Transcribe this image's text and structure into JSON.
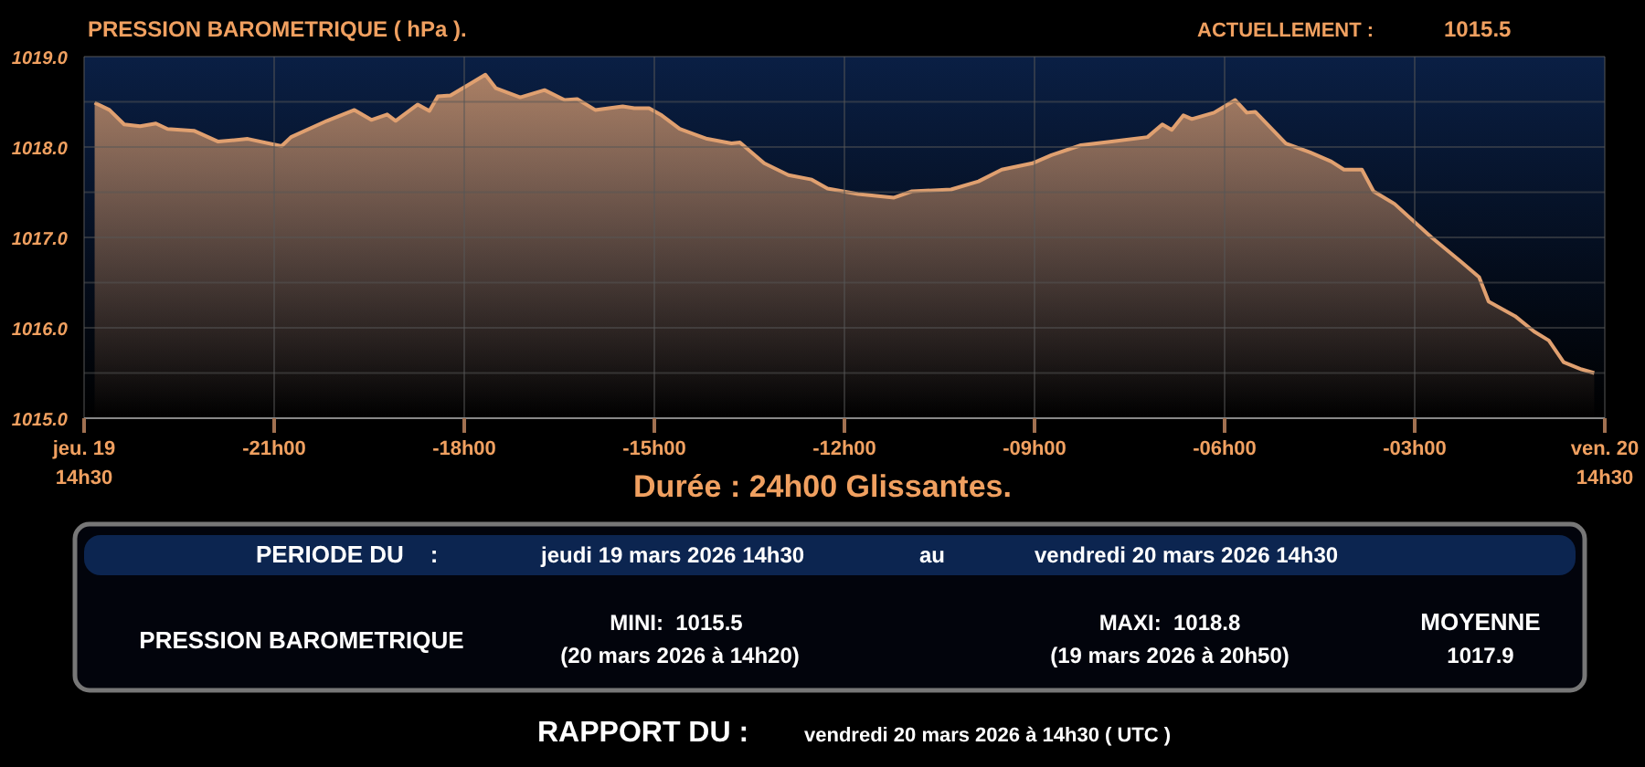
{
  "chart_data": {
    "type": "area",
    "title": "PRESSION BAROMETRIQUE ( hPa ).",
    "x": [
      "2026-03-19T14:40",
      "2026-03-19T14:54",
      "2026-03-19T15:08",
      "2026-03-19T15:23",
      "2026-03-19T15:38",
      "2026-03-19T15:49",
      "2026-03-19T16:14",
      "2026-03-19T16:37",
      "2026-03-19T17:05",
      "2026-03-19T17:37",
      "2026-03-19T17:46",
      "2026-03-19T18:20",
      "2026-03-19T18:46",
      "2026-03-19T19:02",
      "2026-03-19T19:17",
      "2026-03-19T19:25",
      "2026-03-19T19:46",
      "2026-03-19T19:57",
      "2026-03-19T20:05",
      "2026-03-19T20:17",
      "2026-03-19T20:50",
      "2026-03-19T21:00",
      "2026-03-19T21:23",
      "2026-03-19T21:46",
      "2026-03-19T22:05",
      "2026-03-19T22:17",
      "2026-03-19T22:34",
      "2026-03-19T23:00",
      "2026-03-19T23:11",
      "2026-03-19T23:25",
      "2026-03-19T23:37",
      "2026-03-19T23:54",
      "2026-03-20T00:20",
      "2026-03-20T00:43",
      "2026-03-20T00:51",
      "2026-03-20T01:14",
      "2026-03-20T01:37",
      "2026-03-20T01:59",
      "2026-03-20T02:14",
      "2026-03-20T02:43",
      "2026-03-20T03:17",
      "2026-03-20T03:34",
      "2026-03-20T04:11",
      "2026-03-20T04:37",
      "2026-03-20T04:59",
      "2026-03-20T05:28",
      "2026-03-20T05:46",
      "2026-03-20T06:14",
      "2026-03-20T06:43",
      "2026-03-20T07:17",
      "2026-03-20T07:31",
      "2026-03-20T07:40",
      "2026-03-20T07:51",
      "2026-03-20T07:59",
      "2026-03-20T08:20",
      "2026-03-20T08:40",
      "2026-03-20T08:51",
      "2026-03-20T08:59",
      "2026-03-20T09:28",
      "2026-03-20T09:51",
      "2026-03-20T10:11",
      "2026-03-20T10:23",
      "2026-03-20T10:40",
      "2026-03-20T10:51",
      "2026-03-20T11:11",
      "2026-03-20T11:46",
      "2026-03-20T12:14",
      "2026-03-20T12:31",
      "2026-03-20T12:40",
      "2026-03-20T13:05",
      "2026-03-20T13:23",
      "2026-03-20T13:37",
      "2026-03-20T13:51",
      "2026-03-20T14:08",
      "2026-03-20T14:20"
    ],
    "series": [
      {
        "color": "#e0a070",
        "values": [
          1018.49,
          1018.41,
          1018.25,
          1018.23,
          1018.26,
          1018.2,
          1018.18,
          1018.06,
          1018.09,
          1018.01,
          1018.11,
          1018.29,
          1018.41,
          1018.3,
          1018.36,
          1018.29,
          1018.47,
          1018.4,
          1018.56,
          1018.57,
          1018.8,
          1018.65,
          1018.55,
          1018.63,
          1018.52,
          1018.53,
          1018.41,
          1018.45,
          1018.43,
          1018.43,
          1018.35,
          1018.2,
          1018.09,
          1018.04,
          1018.05,
          1017.82,
          1017.69,
          1017.64,
          1017.54,
          1017.48,
          1017.44,
          1017.51,
          1017.53,
          1017.62,
          1017.75,
          1017.82,
          1017.91,
          1018.02,
          1018.06,
          1018.11,
          1018.25,
          1018.19,
          1018.35,
          1018.31,
          1018.38,
          1018.52,
          1018.38,
          1018.39,
          1018.04,
          1017.94,
          1017.84,
          1017.75,
          1017.75,
          1017.51,
          1017.37,
          1017.0,
          1016.73,
          1016.56,
          1016.29,
          1016.13,
          1015.96,
          1015.86,
          1015.62,
          1015.54,
          1015.5
        ]
      }
    ],
    "xlim": [
      "2026-03-19T14:30",
      "2026-03-20T14:30"
    ],
    "xticks": [
      {
        "value": "2026-03-19T14:30",
        "label": "jeu. 19\n14h30"
      },
      {
        "value": "2026-03-19T17:30",
        "label": "-21h00"
      },
      {
        "value": "2026-03-19T20:30",
        "label": "-18h00"
      },
      {
        "value": "2026-03-19T23:30",
        "label": "-15h00"
      },
      {
        "value": "2026-03-20T02:30",
        "label": "-12h00"
      },
      {
        "value": "2026-03-20T05:30",
        "label": "-09h00"
      },
      {
        "value": "2026-03-20T08:30",
        "label": "-06h00"
      },
      {
        "value": "2026-03-20T11:30",
        "label": "-03h00"
      },
      {
        "value": "2026-03-20T14:30",
        "label": "ven. 20\n14h30"
      }
    ],
    "ylim": [
      1015,
      1019
    ],
    "yticks": [
      {
        "value": 1015,
        "label": "1015.0"
      },
      {
        "value": 1015.5,
        "label": null
      },
      {
        "value": 1016,
        "label": "1016.0"
      },
      {
        "value": 1016.5,
        "label": null
      },
      {
        "value": 1017,
        "label": "1017.0"
      },
      {
        "value": 1017.5,
        "label": null
      },
      {
        "value": 1018,
        "label": "1018.0"
      },
      {
        "value": 1018.5,
        "label": null
      },
      {
        "value": 1019,
        "label": "1019.0"
      }
    ],
    "grid": true,
    "annotations": [
      "ACTUELLEMENT :",
      "1015.5",
      "Durée : 24h00 Glissantes.",
      "PERIODE DU    :",
      "jeudi 19 mars 2026 14h30",
      "au",
      "vendredi 20 mars 2026 14h30",
      "PRESSION BAROMETRIQUE",
      "MINI:  1015.5",
      "(20 mars 2026 à 14h20)",
      "MAXI:  1018.8",
      "(19 mars 2026 à 20h50)",
      "MOYENNE",
      "1017.9",
      "RAPPORT DU :",
      "vendredi 20 mars 2026 à 14h30 ( UTC )"
    ]
  }
}
